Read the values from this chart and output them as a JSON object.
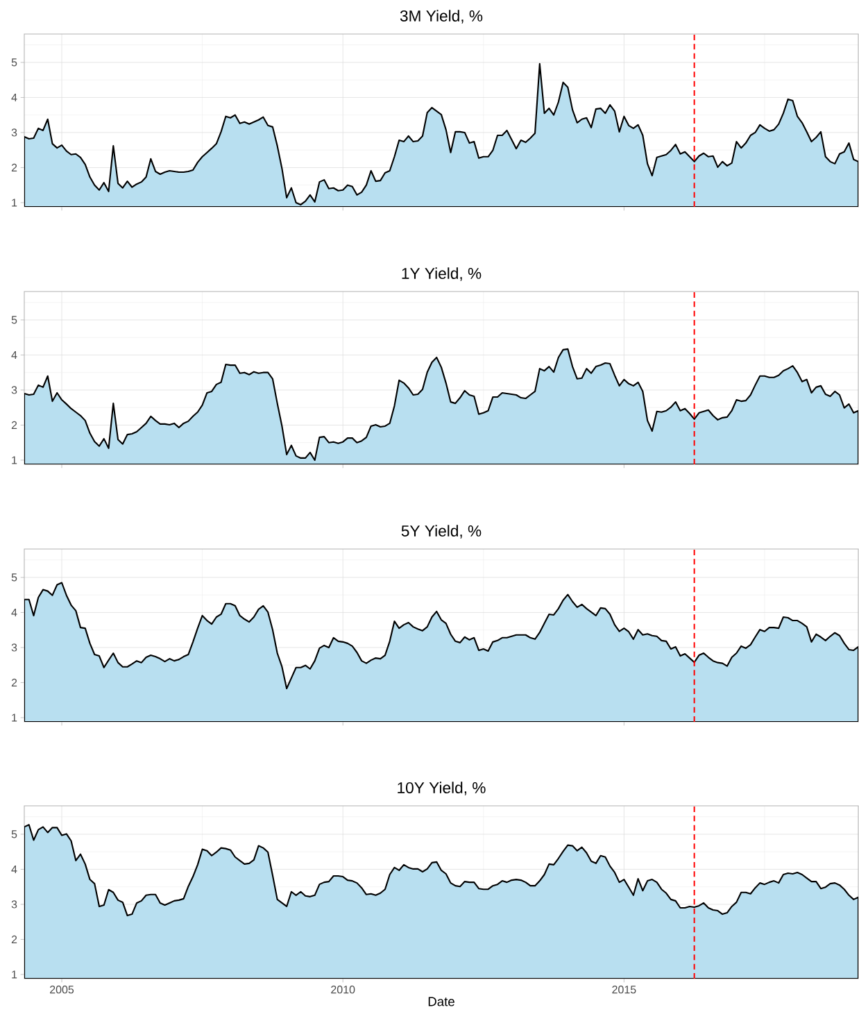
{
  "chart_data": [
    {
      "type": "area",
      "title": "3M Yield, %",
      "color": "#b8dff0",
      "grid": true,
      "tick_labels": "y",
      "xlim": [
        "2004-05",
        "2019-03"
      ],
      "xticks": [
        "2005",
        "2010",
        "2015"
      ],
      "ylim": [
        0.88,
        5.81
      ],
      "yticks": [
        1,
        2,
        3,
        4,
        5
      ],
      "ref_lines": [
        {
          "axis": "x",
          "value": "2016-04",
          "color": "#ff0000",
          "line_style": "dashed"
        }
      ],
      "x": [
        "2004-05",
        "2004-06",
        "2004-07",
        "2004-08",
        "2004-09",
        "2004-10",
        "2004-11",
        "2004-12",
        "2005-01",
        "2005-02",
        "2005-03",
        "2005-04",
        "2005-05",
        "2005-06",
        "2005-07",
        "2005-08",
        "2005-09",
        "2005-10",
        "2005-11",
        "2005-12",
        "2006-01",
        "2006-02",
        "2006-03",
        "2006-04",
        "2006-05",
        "2006-06",
        "2006-07",
        "2006-08",
        "2006-09",
        "2006-10",
        "2006-11",
        "2006-12",
        "2007-01",
        "2007-02",
        "2007-03",
        "2007-04",
        "2007-05",
        "2007-06",
        "2007-07",
        "2007-08",
        "2007-09",
        "2007-10",
        "2007-11",
        "2007-12",
        "2008-01",
        "2008-02",
        "2008-03",
        "2008-04",
        "2008-05",
        "2008-06",
        "2008-07",
        "2008-08",
        "2008-09",
        "2008-10",
        "2008-11",
        "2008-12",
        "2009-01",
        "2009-02",
        "2009-03",
        "2009-04",
        "2009-05",
        "2009-06",
        "2009-07",
        "2009-08",
        "2009-09",
        "2009-10",
        "2009-11",
        "2009-12",
        "2010-01",
        "2010-02",
        "2010-03",
        "2010-04",
        "2010-05",
        "2010-06",
        "2010-07",
        "2010-08",
        "2010-09",
        "2010-10",
        "2010-11",
        "2010-12",
        "2011-01",
        "2011-02",
        "2011-03",
        "2011-04",
        "2011-05",
        "2011-06",
        "2011-07",
        "2011-08",
        "2011-09",
        "2011-10",
        "2011-11",
        "2011-12",
        "2012-01",
        "2012-02",
        "2012-03",
        "2012-04",
        "2012-05",
        "2012-06",
        "2012-07",
        "2012-08",
        "2012-09",
        "2012-10",
        "2012-11",
        "2012-12",
        "2013-01",
        "2013-02",
        "2013-03",
        "2013-04",
        "2013-05",
        "2013-06",
        "2013-07",
        "2013-08",
        "2013-09",
        "2013-10",
        "2013-11",
        "2013-12",
        "2014-01",
        "2014-02",
        "2014-03",
        "2014-04",
        "2014-05",
        "2014-06",
        "2014-07",
        "2014-08",
        "2014-09",
        "2014-10",
        "2014-11",
        "2014-12",
        "2015-01",
        "2015-02",
        "2015-03",
        "2015-04",
        "2015-05",
        "2015-06",
        "2015-07",
        "2015-08",
        "2015-09",
        "2015-10",
        "2015-11",
        "2015-12",
        "2016-01",
        "2016-02",
        "2016-03",
        "2016-04",
        "2016-05",
        "2016-06",
        "2016-07",
        "2016-08",
        "2016-09",
        "2016-10",
        "2016-11",
        "2016-12",
        "2017-01",
        "2017-02",
        "2017-03",
        "2017-04",
        "2017-05",
        "2017-06",
        "2017-07",
        "2017-08",
        "2017-09",
        "2017-10",
        "2017-11",
        "2017-12",
        "2018-01",
        "2018-02",
        "2018-03",
        "2018-04",
        "2018-05",
        "2018-06",
        "2018-07",
        "2018-08",
        "2018-09",
        "2018-10",
        "2018-11",
        "2018-12",
        "2019-01",
        "2019-02",
        "2019-03"
      ],
      "values": [
        2.88,
        2.82,
        2.84,
        3.12,
        3.06,
        3.38,
        2.68,
        2.56,
        2.64,
        2.47,
        2.37,
        2.39,
        2.29,
        2.09,
        1.73,
        1.5,
        1.36,
        1.57,
        1.32,
        2.62,
        1.55,
        1.42,
        1.61,
        1.44,
        1.53,
        1.59,
        1.73,
        2.25,
        1.89,
        1.81,
        1.87,
        1.91,
        1.89,
        1.87,
        1.87,
        1.89,
        1.93,
        2.15,
        2.31,
        2.43,
        2.55,
        2.68,
        3.02,
        3.46,
        3.42,
        3.5,
        3.26,
        3.3,
        3.24,
        3.3,
        3.36,
        3.44,
        3.2,
        3.16,
        2.62,
        1.97,
        1.14,
        1.42,
        1.0,
        0.94,
        1.04,
        1.22,
        1.02,
        1.59,
        1.65,
        1.4,
        1.42,
        1.34,
        1.36,
        1.5,
        1.46,
        1.22,
        1.3,
        1.5,
        1.91,
        1.61,
        1.63,
        1.85,
        1.91,
        2.31,
        2.78,
        2.74,
        2.9,
        2.74,
        2.76,
        2.9,
        3.57,
        3.71,
        3.61,
        3.51,
        3.08,
        2.43,
        3.02,
        3.02,
        3.0,
        2.7,
        2.74,
        2.27,
        2.31,
        2.31,
        2.49,
        2.92,
        2.92,
        3.06,
        2.8,
        2.54,
        2.78,
        2.72,
        2.84,
        2.98,
        4.96,
        3.55,
        3.69,
        3.5,
        3.87,
        4.43,
        4.29,
        3.65,
        3.28,
        3.38,
        3.42,
        3.14,
        3.67,
        3.69,
        3.55,
        3.79,
        3.61,
        3.02,
        3.46,
        3.2,
        3.12,
        3.22,
        2.92,
        2.11,
        1.77,
        2.29,
        2.33,
        2.37,
        2.49,
        2.66,
        2.39,
        2.45,
        2.31,
        2.17,
        2.33,
        2.41,
        2.31,
        2.33,
        2.01,
        2.17,
        2.05,
        2.13,
        2.74,
        2.56,
        2.7,
        2.92,
        3.0,
        3.22,
        3.12,
        3.04,
        3.08,
        3.24,
        3.55,
        3.95,
        3.91,
        3.46,
        3.28,
        3.02,
        2.74,
        2.86,
        3.02,
        2.31,
        2.17,
        2.11,
        2.39,
        2.45,
        2.7,
        2.23,
        2.17
      ]
    },
    {
      "type": "area",
      "title": "1Y Yield, %",
      "color": "#b8dff0",
      "grid": true,
      "tick_labels": "y",
      "xlim": [
        "2004-05",
        "2019-03"
      ],
      "xticks": [
        "2005",
        "2010",
        "2015"
      ],
      "ylim": [
        0.88,
        5.81
      ],
      "yticks": [
        1,
        2,
        3,
        4,
        5
      ],
      "ref_lines": [
        {
          "axis": "x",
          "value": "2016-04",
          "color": "#ff0000",
          "line_style": "dashed"
        }
      ],
      "x": [
        "2004-05",
        "2004-06",
        "2004-07",
        "2004-08",
        "2004-09",
        "2004-10",
        "2004-11",
        "2004-12",
        "2005-01",
        "2005-02",
        "2005-03",
        "2005-04",
        "2005-05",
        "2005-06",
        "2005-07",
        "2005-08",
        "2005-09",
        "2005-10",
        "2005-11",
        "2005-12",
        "2006-01",
        "2006-02",
        "2006-03",
        "2006-04",
        "2006-05",
        "2006-06",
        "2006-07",
        "2006-08",
        "2006-09",
        "2006-10",
        "2006-11",
        "2006-12",
        "2007-01",
        "2007-02",
        "2007-03",
        "2007-04",
        "2007-05",
        "2007-06",
        "2007-07",
        "2007-08",
        "2007-09",
        "2007-10",
        "2007-11",
        "2007-12",
        "2008-01",
        "2008-02",
        "2008-03",
        "2008-04",
        "2008-05",
        "2008-06",
        "2008-07",
        "2008-08",
        "2008-09",
        "2008-10",
        "2008-11",
        "2008-12",
        "2009-01",
        "2009-02",
        "2009-03",
        "2009-04",
        "2009-05",
        "2009-06",
        "2009-07",
        "2009-08",
        "2009-09",
        "2009-10",
        "2009-11",
        "2009-12",
        "2010-01",
        "2010-02",
        "2010-03",
        "2010-04",
        "2010-05",
        "2010-06",
        "2010-07",
        "2010-08",
        "2010-09",
        "2010-10",
        "2010-11",
        "2010-12",
        "2011-01",
        "2011-02",
        "2011-03",
        "2011-04",
        "2011-05",
        "2011-06",
        "2011-07",
        "2011-08",
        "2011-09",
        "2011-10",
        "2011-11",
        "2011-12",
        "2012-01",
        "2012-02",
        "2012-03",
        "2012-04",
        "2012-05",
        "2012-06",
        "2012-07",
        "2012-08",
        "2012-09",
        "2012-10",
        "2012-11",
        "2012-12",
        "2013-01",
        "2013-02",
        "2013-03",
        "2013-04",
        "2013-05",
        "2013-06",
        "2013-07",
        "2013-08",
        "2013-09",
        "2013-10",
        "2013-11",
        "2013-12",
        "2014-01",
        "2014-02",
        "2014-03",
        "2014-04",
        "2014-05",
        "2014-06",
        "2014-07",
        "2014-08",
        "2014-09",
        "2014-10",
        "2014-11",
        "2014-12",
        "2015-01",
        "2015-02",
        "2015-03",
        "2015-04",
        "2015-05",
        "2015-06",
        "2015-07",
        "2015-08",
        "2015-09",
        "2015-10",
        "2015-11",
        "2015-12",
        "2016-01",
        "2016-02",
        "2016-03",
        "2016-04",
        "2016-05",
        "2016-06",
        "2016-07",
        "2016-08",
        "2016-09",
        "2016-10",
        "2016-11",
        "2016-12",
        "2017-01",
        "2017-02",
        "2017-03",
        "2017-04",
        "2017-05",
        "2017-06",
        "2017-07",
        "2017-08",
        "2017-09",
        "2017-10",
        "2017-11",
        "2017-12",
        "2018-01",
        "2018-02",
        "2018-03",
        "2018-04",
        "2018-05",
        "2018-06",
        "2018-07",
        "2018-08",
        "2018-09",
        "2018-10",
        "2018-11",
        "2018-12",
        "2019-01",
        "2019-02",
        "2019-03"
      ],
      "values": [
        2.9,
        2.86,
        2.88,
        3.14,
        3.08,
        3.4,
        2.68,
        2.92,
        2.72,
        2.6,
        2.47,
        2.37,
        2.27,
        2.13,
        1.77,
        1.53,
        1.4,
        1.61,
        1.34,
        2.62,
        1.59,
        1.46,
        1.73,
        1.75,
        1.81,
        1.93,
        2.05,
        2.25,
        2.13,
        2.03,
        2.03,
        2.01,
        2.05,
        1.93,
        2.05,
        2.11,
        2.25,
        2.37,
        2.57,
        2.92,
        2.96,
        3.16,
        3.22,
        3.73,
        3.71,
        3.71,
        3.48,
        3.5,
        3.44,
        3.52,
        3.48,
        3.5,
        3.5,
        3.32,
        2.62,
        1.97,
        1.16,
        1.42,
        1.12,
        1.06,
        1.06,
        1.22,
        1.0,
        1.65,
        1.67,
        1.5,
        1.52,
        1.48,
        1.52,
        1.63,
        1.63,
        1.5,
        1.55,
        1.65,
        1.97,
        2.01,
        1.95,
        1.97,
        2.05,
        2.55,
        3.28,
        3.2,
        3.06,
        2.86,
        2.88,
        3.02,
        3.51,
        3.79,
        3.93,
        3.65,
        3.2,
        2.66,
        2.62,
        2.78,
        2.98,
        2.86,
        2.82,
        2.31,
        2.35,
        2.41,
        2.8,
        2.8,
        2.92,
        2.9,
        2.88,
        2.86,
        2.78,
        2.76,
        2.86,
        2.96,
        3.61,
        3.55,
        3.67,
        3.51,
        3.93,
        4.15,
        4.17,
        3.67,
        3.32,
        3.34,
        3.61,
        3.48,
        3.67,
        3.71,
        3.77,
        3.75,
        3.42,
        3.12,
        3.3,
        3.18,
        3.12,
        3.22,
        2.96,
        2.13,
        1.83,
        2.39,
        2.37,
        2.41,
        2.51,
        2.66,
        2.41,
        2.47,
        2.33,
        2.17,
        2.35,
        2.39,
        2.43,
        2.27,
        2.15,
        2.21,
        2.23,
        2.41,
        2.72,
        2.68,
        2.7,
        2.86,
        3.14,
        3.4,
        3.4,
        3.36,
        3.36,
        3.42,
        3.55,
        3.61,
        3.69,
        3.5,
        3.24,
        3.3,
        2.92,
        3.08,
        3.12,
        2.88,
        2.82,
        2.96,
        2.86,
        2.49,
        2.6,
        2.35,
        2.41
      ]
    },
    {
      "type": "area",
      "title": "5Y Yield, %",
      "color": "#b8dff0",
      "grid": true,
      "tick_labels": "y",
      "xlim": [
        "2004-05",
        "2019-03"
      ],
      "xticks": [
        "2005",
        "2010",
        "2015"
      ],
      "ylim": [
        0.88,
        5.81
      ],
      "yticks": [
        1,
        2,
        3,
        4,
        5
      ],
      "ref_lines": [
        {
          "axis": "x",
          "value": "2016-04",
          "color": "#ff0000",
          "line_style": "dashed"
        }
      ],
      "x": [
        "2004-05",
        "2004-06",
        "2004-07",
        "2004-08",
        "2004-09",
        "2004-10",
        "2004-11",
        "2004-12",
        "2005-01",
        "2005-02",
        "2005-03",
        "2005-04",
        "2005-05",
        "2005-06",
        "2005-07",
        "2005-08",
        "2005-09",
        "2005-10",
        "2005-11",
        "2005-12",
        "2006-01",
        "2006-02",
        "2006-03",
        "2006-04",
        "2006-05",
        "2006-06",
        "2006-07",
        "2006-08",
        "2006-09",
        "2006-10",
        "2006-11",
        "2006-12",
        "2007-01",
        "2007-02",
        "2007-03",
        "2007-04",
        "2007-05",
        "2007-06",
        "2007-07",
        "2007-08",
        "2007-09",
        "2007-10",
        "2007-11",
        "2007-12",
        "2008-01",
        "2008-02",
        "2008-03",
        "2008-04",
        "2008-05",
        "2008-06",
        "2008-07",
        "2008-08",
        "2008-09",
        "2008-10",
        "2008-11",
        "2008-12",
        "2009-01",
        "2009-02",
        "2009-03",
        "2009-04",
        "2009-05",
        "2009-06",
        "2009-07",
        "2009-08",
        "2009-09",
        "2009-10",
        "2009-11",
        "2009-12",
        "2010-01",
        "2010-02",
        "2010-03",
        "2010-04",
        "2010-05",
        "2010-06",
        "2010-07",
        "2010-08",
        "2010-09",
        "2010-10",
        "2010-11",
        "2010-12",
        "2011-01",
        "2011-02",
        "2011-03",
        "2011-04",
        "2011-05",
        "2011-06",
        "2011-07",
        "2011-08",
        "2011-09",
        "2011-10",
        "2011-11",
        "2011-12",
        "2012-01",
        "2012-02",
        "2012-03",
        "2012-04",
        "2012-05",
        "2012-06",
        "2012-07",
        "2012-08",
        "2012-09",
        "2012-10",
        "2012-11",
        "2012-12",
        "2013-01",
        "2013-02",
        "2013-03",
        "2013-04",
        "2013-05",
        "2013-06",
        "2013-07",
        "2013-08",
        "2013-09",
        "2013-10",
        "2013-11",
        "2013-12",
        "2014-01",
        "2014-02",
        "2014-03",
        "2014-04",
        "2014-05",
        "2014-06",
        "2014-07",
        "2014-08",
        "2014-09",
        "2014-10",
        "2014-11",
        "2014-12",
        "2015-01",
        "2015-02",
        "2015-03",
        "2015-04",
        "2015-05",
        "2015-06",
        "2015-07",
        "2015-08",
        "2015-09",
        "2015-10",
        "2015-11",
        "2015-12",
        "2016-01",
        "2016-02",
        "2016-03",
        "2016-04",
        "2016-05",
        "2016-06",
        "2016-07",
        "2016-08",
        "2016-09",
        "2016-10",
        "2016-11",
        "2016-12",
        "2017-01",
        "2017-02",
        "2017-03",
        "2017-04",
        "2017-05",
        "2017-06",
        "2017-07",
        "2017-08",
        "2017-09",
        "2017-10",
        "2017-11",
        "2017-12",
        "2018-01",
        "2018-02",
        "2018-03",
        "2018-04",
        "2018-05",
        "2018-06",
        "2018-07",
        "2018-08",
        "2018-09",
        "2018-10",
        "2018-11",
        "2018-12",
        "2019-01",
        "2019-02",
        "2019-03"
      ],
      "values": [
        4.37,
        4.37,
        3.91,
        4.43,
        4.65,
        4.61,
        4.49,
        4.79,
        4.85,
        4.49,
        4.21,
        4.05,
        3.57,
        3.55,
        3.12,
        2.8,
        2.76,
        2.43,
        2.64,
        2.84,
        2.57,
        2.45,
        2.45,
        2.53,
        2.62,
        2.57,
        2.72,
        2.78,
        2.74,
        2.68,
        2.6,
        2.68,
        2.62,
        2.66,
        2.74,
        2.8,
        3.16,
        3.55,
        3.91,
        3.77,
        3.67,
        3.87,
        3.95,
        4.25,
        4.25,
        4.19,
        3.91,
        3.81,
        3.73,
        3.87,
        4.09,
        4.19,
        4.01,
        3.51,
        2.84,
        2.45,
        1.83,
        2.13,
        2.43,
        2.43,
        2.49,
        2.39,
        2.62,
        2.98,
        3.06,
        3.0,
        3.28,
        3.18,
        3.16,
        3.12,
        3.04,
        2.86,
        2.62,
        2.55,
        2.64,
        2.7,
        2.68,
        2.78,
        3.18,
        3.75,
        3.55,
        3.65,
        3.71,
        3.59,
        3.53,
        3.48,
        3.59,
        3.87,
        4.03,
        3.79,
        3.69,
        3.38,
        3.18,
        3.14,
        3.3,
        3.22,
        3.28,
        2.92,
        2.96,
        2.9,
        3.16,
        3.2,
        3.28,
        3.28,
        3.32,
        3.36,
        3.36,
        3.36,
        3.28,
        3.24,
        3.43,
        3.69,
        3.95,
        3.93,
        4.11,
        4.35,
        4.51,
        4.31,
        4.15,
        4.23,
        4.11,
        4.01,
        3.91,
        4.13,
        4.11,
        3.95,
        3.65,
        3.46,
        3.55,
        3.45,
        3.24,
        3.51,
        3.36,
        3.39,
        3.34,
        3.32,
        3.2,
        3.18,
        2.96,
        3.02,
        2.76,
        2.82,
        2.7,
        2.58,
        2.78,
        2.84,
        2.72,
        2.62,
        2.57,
        2.55,
        2.47,
        2.72,
        2.84,
        3.04,
        2.98,
        3.08,
        3.3,
        3.51,
        3.46,
        3.57,
        3.57,
        3.55,
        3.87,
        3.85,
        3.77,
        3.77,
        3.69,
        3.59,
        3.16,
        3.38,
        3.3,
        3.2,
        3.32,
        3.42,
        3.34,
        3.12,
        2.94,
        2.92,
        3.02
      ]
    },
    {
      "type": "area",
      "title": "10Y Yield, %",
      "xlabel": "Date",
      "color": "#b8dff0",
      "grid": true,
      "xlim": [
        "2004-05",
        "2019-03"
      ],
      "xticks": [
        "2005",
        "2010",
        "2015"
      ],
      "ylim": [
        0.88,
        5.81
      ],
      "yticks": [
        1,
        2,
        3,
        4,
        5
      ],
      "ref_lines": [
        {
          "axis": "x",
          "value": "2016-04",
          "color": "#ff0000",
          "line_style": "dashed"
        }
      ],
      "x": [
        "2004-05",
        "2004-06",
        "2004-07",
        "2004-08",
        "2004-09",
        "2004-10",
        "2004-11",
        "2004-12",
        "2005-01",
        "2005-02",
        "2005-03",
        "2005-04",
        "2005-05",
        "2005-06",
        "2005-07",
        "2005-08",
        "2005-09",
        "2005-10",
        "2005-11",
        "2005-12",
        "2006-01",
        "2006-02",
        "2006-03",
        "2006-04",
        "2006-05",
        "2006-06",
        "2006-07",
        "2006-08",
        "2006-09",
        "2006-10",
        "2006-11",
        "2006-12",
        "2007-01",
        "2007-02",
        "2007-03",
        "2007-04",
        "2007-05",
        "2007-06",
        "2007-07",
        "2007-08",
        "2007-09",
        "2007-10",
        "2007-11",
        "2007-12",
        "2008-01",
        "2008-02",
        "2008-03",
        "2008-04",
        "2008-05",
        "2008-06",
        "2008-07",
        "2008-08",
        "2008-09",
        "2008-10",
        "2008-11",
        "2008-12",
        "2009-01",
        "2009-02",
        "2009-03",
        "2009-04",
        "2009-05",
        "2009-06",
        "2009-07",
        "2009-08",
        "2009-09",
        "2009-10",
        "2009-11",
        "2009-12",
        "2010-01",
        "2010-02",
        "2010-03",
        "2010-04",
        "2010-05",
        "2010-06",
        "2010-07",
        "2010-08",
        "2010-09",
        "2010-10",
        "2010-11",
        "2010-12",
        "2011-01",
        "2011-02",
        "2011-03",
        "2011-04",
        "2011-05",
        "2011-06",
        "2011-07",
        "2011-08",
        "2011-09",
        "2011-10",
        "2011-11",
        "2011-12",
        "2012-01",
        "2012-02",
        "2012-03",
        "2012-04",
        "2012-05",
        "2012-06",
        "2012-07",
        "2012-08",
        "2012-09",
        "2012-10",
        "2012-11",
        "2012-12",
        "2013-01",
        "2013-02",
        "2013-03",
        "2013-04",
        "2013-05",
        "2013-06",
        "2013-07",
        "2013-08",
        "2013-09",
        "2013-10",
        "2013-11",
        "2013-12",
        "2014-01",
        "2014-02",
        "2014-03",
        "2014-04",
        "2014-05",
        "2014-06",
        "2014-07",
        "2014-08",
        "2014-09",
        "2014-10",
        "2014-11",
        "2014-12",
        "2015-01",
        "2015-02",
        "2015-03",
        "2015-04",
        "2015-05",
        "2015-06",
        "2015-07",
        "2015-08",
        "2015-09",
        "2015-10",
        "2015-11",
        "2015-12",
        "2016-01",
        "2016-02",
        "2016-03",
        "2016-04",
        "2016-05",
        "2016-06",
        "2016-07",
        "2016-08",
        "2016-09",
        "2016-10",
        "2016-11",
        "2016-12",
        "2017-01",
        "2017-02",
        "2017-03",
        "2017-04",
        "2017-05",
        "2017-06",
        "2017-07",
        "2017-08",
        "2017-09",
        "2017-10",
        "2017-11",
        "2017-12",
        "2018-01",
        "2018-02",
        "2018-03",
        "2018-04",
        "2018-05",
        "2018-06",
        "2018-07",
        "2018-08",
        "2018-09",
        "2018-10",
        "2018-11",
        "2018-12",
        "2019-01",
        "2019-02",
        "2019-03"
      ],
      "values": [
        5.21,
        5.27,
        4.83,
        5.13,
        5.21,
        5.05,
        5.19,
        5.19,
        4.97,
        5.01,
        4.81,
        4.25,
        4.43,
        4.15,
        3.71,
        3.59,
        2.94,
        2.98,
        3.42,
        3.34,
        3.12,
        3.06,
        2.68,
        2.72,
        3.04,
        3.1,
        3.26,
        3.28,
        3.28,
        3.04,
        2.98,
        3.04,
        3.1,
        3.12,
        3.16,
        3.51,
        3.79,
        4.13,
        4.57,
        4.53,
        4.39,
        4.49,
        4.61,
        4.59,
        4.55,
        4.35,
        4.25,
        4.15,
        4.17,
        4.27,
        4.67,
        4.61,
        4.49,
        3.83,
        3.14,
        3.04,
        2.94,
        3.36,
        3.26,
        3.36,
        3.24,
        3.22,
        3.26,
        3.57,
        3.63,
        3.65,
        3.81,
        3.81,
        3.79,
        3.69,
        3.67,
        3.61,
        3.47,
        3.28,
        3.3,
        3.26,
        3.32,
        3.43,
        3.85,
        4.05,
        3.97,
        4.13,
        4.05,
        4.01,
        4.01,
        3.93,
        4.01,
        4.19,
        4.21,
        3.97,
        3.87,
        3.61,
        3.53,
        3.51,
        3.65,
        3.63,
        3.63,
        3.45,
        3.43,
        3.43,
        3.53,
        3.57,
        3.67,
        3.63,
        3.69,
        3.71,
        3.69,
        3.63,
        3.53,
        3.53,
        3.67,
        3.85,
        4.15,
        4.13,
        4.31,
        4.51,
        4.69,
        4.67,
        4.53,
        4.63,
        4.47,
        4.23,
        4.17,
        4.39,
        4.35,
        4.09,
        3.91,
        3.63,
        3.71,
        3.49,
        3.26,
        3.73,
        3.39,
        3.67,
        3.71,
        3.63,
        3.43,
        3.32,
        3.14,
        3.1,
        2.9,
        2.9,
        2.94,
        2.92,
        2.96,
        3.04,
        2.9,
        2.84,
        2.82,
        2.72,
        2.76,
        2.94,
        3.06,
        3.34,
        3.34,
        3.3,
        3.47,
        3.61,
        3.57,
        3.63,
        3.67,
        3.61,
        3.85,
        3.89,
        3.87,
        3.91,
        3.85,
        3.75,
        3.65,
        3.65,
        3.45,
        3.49,
        3.59,
        3.61,
        3.55,
        3.43,
        3.26,
        3.14,
        3.2
      ]
    }
  ]
}
